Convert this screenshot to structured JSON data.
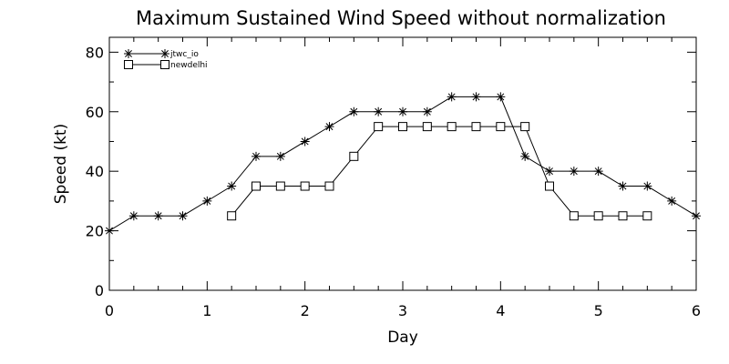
{
  "chart_data": {
    "type": "line",
    "title": "Maximum Sustained Wind Speed without normalization",
    "xlabel": "Day",
    "ylabel": "Speed (kt)",
    "xlim": [
      0,
      6
    ],
    "ylim": [
      0,
      85
    ],
    "xticks": [
      0,
      1,
      2,
      3,
      4,
      5,
      6
    ],
    "xtick_labels": [
      "0",
      "1",
      "2",
      "3",
      "4",
      "5",
      "6"
    ],
    "yticks": [
      0,
      20,
      40,
      60,
      80
    ],
    "ytick_labels": [
      "0",
      "20",
      "40",
      "60",
      "80"
    ],
    "legend_position": "top-left",
    "grid": false,
    "series": [
      {
        "name": "jtwc_io",
        "marker": "asterisk",
        "color": "#000000",
        "x": [
          0,
          0.25,
          0.5,
          0.75,
          1,
          1.25,
          1.5,
          1.75,
          2,
          2.25,
          2.5,
          2.75,
          3,
          3.25,
          3.5,
          3.75,
          4,
          4.25,
          4.5,
          4.75,
          5,
          5.25,
          5.5,
          5.75,
          6
        ],
        "y": [
          20,
          25,
          25,
          25,
          30,
          35,
          45,
          45,
          50,
          55,
          60,
          60,
          60,
          60,
          65,
          65,
          65,
          45,
          40,
          40,
          40,
          35,
          35,
          30,
          25
        ]
      },
      {
        "name": "newdelhi",
        "marker": "square",
        "color": "#000000",
        "x": [
          1.25,
          1.5,
          1.75,
          2,
          2.25,
          2.5,
          2.75,
          3,
          3.25,
          3.5,
          3.75,
          4,
          4.25,
          4.5,
          4.75,
          5,
          5.25,
          5.5
        ],
        "y": [
          25,
          35,
          35,
          35,
          35,
          45,
          55,
          55,
          55,
          55,
          55,
          55,
          55,
          35,
          25,
          25,
          25,
          25
        ]
      }
    ]
  }
}
